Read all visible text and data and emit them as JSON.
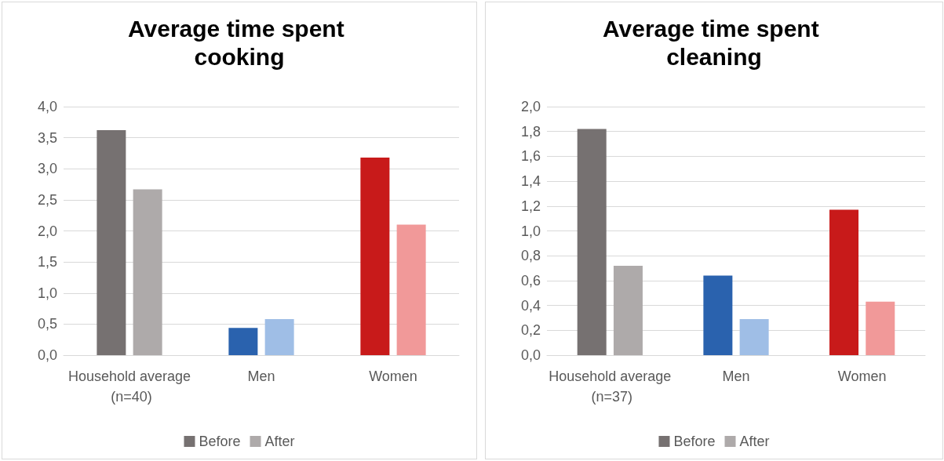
{
  "chart_data": [
    {
      "type": "bar",
      "title": "Average time spent cooking",
      "categories": [
        "Household average (n=40)",
        "Men",
        "Women"
      ],
      "series": [
        {
          "name": "Before",
          "color": "#767171",
          "colors": [
            "#767171",
            "#2a62ae",
            "#c81a1a"
          ],
          "values": [
            3.62,
            0.44,
            3.18
          ]
        },
        {
          "name": "After",
          "color": "#aeaaaa",
          "colors": [
            "#aeaaaa",
            "#9fbee6",
            "#f19999"
          ],
          "values": [
            2.67,
            0.58,
            2.1
          ]
        }
      ],
      "ylim": [
        0,
        4
      ],
      "yticks": [
        {
          "value": 0,
          "label": "0,0"
        },
        {
          "value": 0.5,
          "label": "0,5"
        },
        {
          "value": 1,
          "label": "1,0"
        },
        {
          "value": 1.5,
          "label": "1,5"
        },
        {
          "value": 2,
          "label": "2,0"
        },
        {
          "value": 2.5,
          "label": "2,5"
        },
        {
          "value": 3,
          "label": "3,0"
        },
        {
          "value": 3.5,
          "label": "3,5"
        },
        {
          "value": 4,
          "label": "4,0"
        }
      ],
      "grid": "y",
      "legend": "bottom"
    },
    {
      "type": "bar",
      "title": "Average time spent cleaning",
      "categories": [
        "Household average (n=37)",
        "Men",
        "Women"
      ],
      "series": [
        {
          "name": "Before",
          "color": "#767171",
          "colors": [
            "#767171",
            "#2a62ae",
            "#c81a1a"
          ],
          "values": [
            1.82,
            0.64,
            1.17
          ]
        },
        {
          "name": "After",
          "color": "#aeaaaa",
          "colors": [
            "#aeaaaa",
            "#9fbee6",
            "#f19999"
          ],
          "values": [
            0.72,
            0.29,
            0.43
          ]
        }
      ],
      "ylim": [
        0,
        2
      ],
      "yticks": [
        {
          "value": 0,
          "label": "0,0"
        },
        {
          "value": 0.2,
          "label": "0,2"
        },
        {
          "value": 0.4,
          "label": "0,4"
        },
        {
          "value": 0.6,
          "label": "0,6"
        },
        {
          "value": 0.8,
          "label": "0,8"
        },
        {
          "value": 1,
          "label": "1,0"
        },
        {
          "value": 1.2,
          "label": "1,2"
        },
        {
          "value": 1.4,
          "label": "1,4"
        },
        {
          "value": 1.6,
          "label": "1,6"
        },
        {
          "value": 1.8,
          "label": "1,8"
        },
        {
          "value": 2,
          "label": "2,0"
        }
      ],
      "grid": "y",
      "legend": "bottom"
    }
  ]
}
